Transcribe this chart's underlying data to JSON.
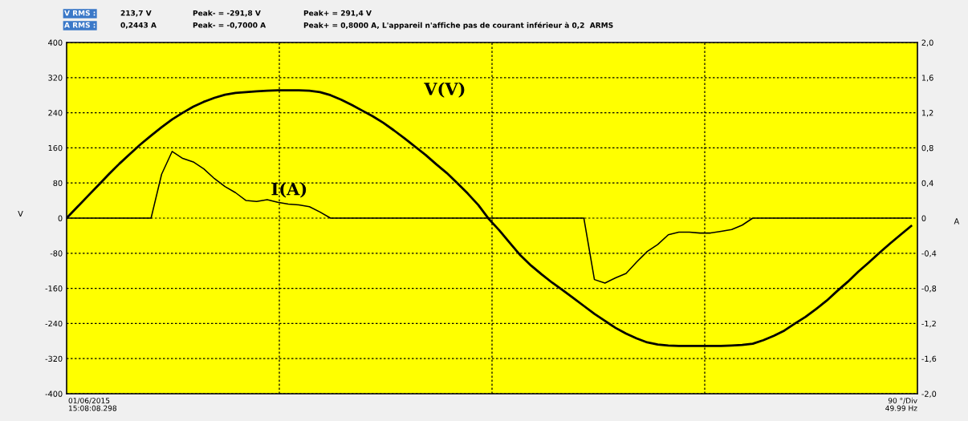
{
  "chart_data": {
    "type": "line",
    "categories": [
      null,
      null,
      null,
      null,
      null,
      null,
      null,
      null,
      null,
      null,
      null,
      null,
      null,
      null,
      null,
      null,
      null,
      null,
      null,
      null,
      null,
      null,
      null,
      null,
      null,
      null,
      null,
      null,
      null,
      null,
      null,
      null,
      null,
      null,
      null,
      null,
      null,
      null,
      null,
      null,
      null,
      null,
      null,
      null,
      null,
      null,
      null,
      null,
      null,
      null,
      null,
      null,
      null,
      null,
      null,
      null,
      null,
      null,
      null,
      null,
      null,
      null,
      null,
      null,
      null,
      null,
      null,
      null,
      null,
      null,
      null,
      null,
      null,
      null,
      null,
      null,
      null,
      null,
      null,
      null,
      null
    ],
    "series": [
      {
        "name": "V(V)",
        "color": "#000000",
        "values": [
          0,
          25,
          50,
          75,
          100,
          124,
          146,
          168,
          188,
          207,
          225,
          240,
          254,
          265,
          274,
          281,
          285,
          287,
          289,
          290,
          291,
          291,
          291,
          290,
          287,
          280,
          270,
          258,
          245,
          232,
          217,
          200,
          182,
          163,
          144,
          123,
          103,
          80,
          56,
          30,
          -2,
          -28,
          -57,
          -85,
          -108,
          -128,
          -147,
          -164,
          -182,
          -200,
          -218,
          -234,
          -250,
          -263,
          -274,
          -283,
          -288,
          -290,
          -291,
          -291,
          -291,
          -291,
          -291,
          -290,
          -289,
          -286,
          -278,
          -268,
          -256,
          -240,
          -225,
          -207,
          -188,
          -166,
          -145,
          -122,
          -101,
          -79,
          -58,
          -38,
          -18
        ]
      },
      {
        "name": "I(A)",
        "color": "#000000",
        "axis": "y2",
        "values": [
          0,
          0,
          0,
          0,
          0,
          0,
          0,
          0,
          0,
          0.5,
          0.76,
          0.68,
          0.64,
          0.56,
          0.45,
          0.36,
          0.29,
          0.2,
          0.19,
          0.21,
          0.18,
          0.16,
          0.15,
          0.13,
          0.07,
          0,
          0,
          0,
          0,
          0,
          0,
          0,
          0,
          0,
          0,
          0,
          0,
          0,
          0,
          0,
          0,
          0,
          0,
          0,
          0,
          0,
          0,
          0,
          0,
          0,
          -0.7,
          -0.74,
          -0.68,
          -0.63,
          -0.5,
          -0.38,
          -0.3,
          -0.19,
          -0.16,
          -0.16,
          -0.17,
          -0.17,
          -0.15,
          -0.13,
          -0.08,
          0,
          0,
          0,
          0,
          0,
          0,
          0,
          0,
          0,
          0,
          0,
          0,
          0,
          0,
          0,
          0
        ]
      }
    ],
    "ylabel": "V",
    "y2label": "A",
    "ylim": [
      -400,
      400
    ],
    "yticks": [
      -400,
      -320,
      -240,
      -160,
      -80,
      0,
      80,
      160,
      240,
      320,
      400
    ],
    "y2lim": [
      -2,
      2
    ],
    "y2ticks": [
      {
        "value": -2,
        "label": "-2,0"
      },
      {
        "value": -1.6,
        "label": "-1,6"
      },
      {
        "value": -1.2,
        "label": "-1,2"
      },
      {
        "value": -0.8,
        "label": "-0,8"
      },
      {
        "value": -0.4,
        "label": "-0,4"
      },
      0,
      {
        "value": 0.4,
        "label": "0,4"
      },
      {
        "value": 0.8,
        "label": "0,8"
      },
      {
        "value": 1.2,
        "label": "1,2"
      },
      {
        "value": 1.6,
        "label": "1,6"
      },
      {
        "value": 2,
        "label": "2,0"
      }
    ],
    "grid": true,
    "annotations": [
      "V RMS :",
      "213,7 V",
      "Peak- = -291,8 V",
      "Peak+ = 291,4 V",
      "A RMS :",
      "0,2443 A",
      "Peak- = -0,7000 A",
      "Peak+ = 0,8000 A, L'appareil n'affiche pas de courant inférieur à 0,2  ARMS",
      "01/06/2015\n15:08:08.298",
      "90 °/Div\n49.99 Hz"
    ]
  }
}
